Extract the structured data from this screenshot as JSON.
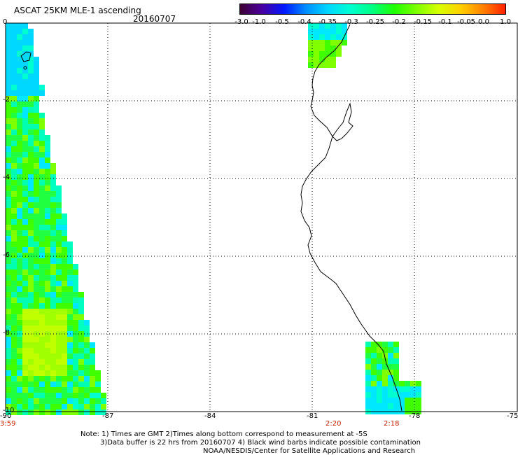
{
  "header": {
    "title": "ASCAT 25KM MLE-1 ascending",
    "date": "20160707"
  },
  "colorbar": {
    "labels": [
      "-3.0",
      "-1.0",
      "-0.5",
      "-0.4",
      "-0.35",
      "-0.3",
      "-0.25",
      "-0.2",
      "-0.15",
      "-0.1",
      "-0.05",
      "0.0",
      "1.0"
    ],
    "colors": [
      "#3d0033",
      "#4a00a0",
      "#0018ff",
      "#0090ff",
      "#00d8ff",
      "#00ffd0",
      "#00ff80",
      "#20ff00",
      "#80ff00",
      "#d8ff00",
      "#ffd000",
      "#ff8000",
      "#ff2000"
    ]
  },
  "axes": {
    "lat_labels": [
      "0",
      "-2",
      "-4",
      "-6",
      "-8",
      "-10"
    ],
    "lon_labels": [
      "-90",
      "-87",
      "-84",
      "-81",
      "-78",
      "-75"
    ],
    "time_labels": [
      "3:59",
      "2:20",
      "2:18"
    ]
  },
  "notes": {
    "line1": "Note: 1) Times are GMT 2)Times along bottom correspond to measurement at -5S",
    "line2": "3)Data buffer is 22 hrs from 20160707 4) Black wind barbs indicate possible contamination",
    "line3": "NOAA/NESDIS/Center for Satellite Applications and Research"
  }
}
